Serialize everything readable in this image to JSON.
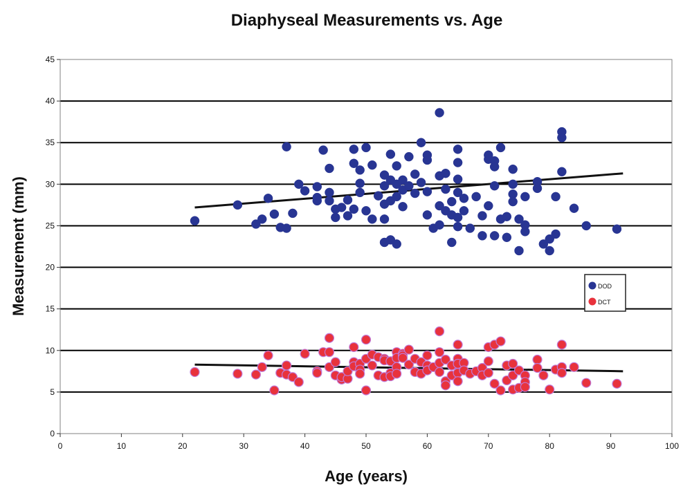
{
  "chart_data": {
    "type": "scatter",
    "title": "Diaphyseal Measurements vs. Age",
    "xlabel": "Age (years)",
    "ylabel": "Measurement (mm)",
    "xlim": [
      0,
      100
    ],
    "ylim": [
      0,
      45
    ],
    "xticks": [
      0,
      10,
      20,
      30,
      40,
      50,
      60,
      70,
      80,
      90,
      100
    ],
    "yticks": [
      0,
      5,
      10,
      15,
      20,
      25,
      30,
      35,
      40,
      45
    ],
    "grid": "horizontal",
    "legend": "right",
    "series": [
      {
        "name": "DOD",
        "color": "#283593",
        "points": [
          [
            22,
            25.6
          ],
          [
            29,
            27.5
          ],
          [
            32,
            25.2
          ],
          [
            33,
            25.8
          ],
          [
            34,
            28.3
          ],
          [
            35,
            26.4
          ],
          [
            36,
            24.8
          ],
          [
            37,
            24.7
          ],
          [
            37,
            34.5
          ],
          [
            38,
            26.5
          ],
          [
            39,
            30.0
          ],
          [
            40,
            29.2
          ],
          [
            42,
            29.7
          ],
          [
            42,
            28.4
          ],
          [
            42,
            28.0
          ],
          [
            43,
            34.1
          ],
          [
            44,
            31.9
          ],
          [
            44,
            29.0
          ],
          [
            44,
            28.0
          ],
          [
            45,
            27.0
          ],
          [
            45,
            26.0
          ],
          [
            46,
            27.2
          ],
          [
            47,
            28.1
          ],
          [
            47,
            26.2
          ],
          [
            48,
            34.2
          ],
          [
            48,
            32.5
          ],
          [
            48,
            27.0
          ],
          [
            49,
            31.7
          ],
          [
            49,
            30.1
          ],
          [
            49,
            29.0
          ],
          [
            50,
            34.4
          ],
          [
            50,
            26.8
          ],
          [
            51,
            32.3
          ],
          [
            51,
            25.8
          ],
          [
            52,
            28.6
          ],
          [
            53,
            31.1
          ],
          [
            53,
            29.8
          ],
          [
            53,
            27.6
          ],
          [
            53,
            25.8
          ],
          [
            53,
            23.0
          ],
          [
            54,
            33.6
          ],
          [
            54,
            30.5
          ],
          [
            54,
            28.0
          ],
          [
            54,
            23.3
          ],
          [
            55,
            32.2
          ],
          [
            55,
            30.0
          ],
          [
            55,
            28.5
          ],
          [
            55,
            22.8
          ],
          [
            56,
            30.5
          ],
          [
            56,
            29.3
          ],
          [
            56,
            27.3
          ],
          [
            57,
            33.3
          ],
          [
            57,
            29.8
          ],
          [
            58,
            31.2
          ],
          [
            58,
            28.9
          ],
          [
            59,
            35.0
          ],
          [
            59,
            30.2
          ],
          [
            60,
            33.5
          ],
          [
            60,
            32.9
          ],
          [
            60,
            29.1
          ],
          [
            60,
            26.3
          ],
          [
            61,
            24.7
          ],
          [
            62,
            38.6
          ],
          [
            62,
            31.0
          ],
          [
            62,
            27.4
          ],
          [
            62,
            25.1
          ],
          [
            63,
            31.3
          ],
          [
            63,
            29.4
          ],
          [
            63,
            26.8
          ],
          [
            64,
            27.9
          ],
          [
            64,
            26.3
          ],
          [
            64,
            23.0
          ],
          [
            65,
            34.2
          ],
          [
            65,
            32.6
          ],
          [
            65,
            30.6
          ],
          [
            65,
            29.0
          ],
          [
            65,
            26.0
          ],
          [
            65,
            24.9
          ],
          [
            66,
            26.8
          ],
          [
            66,
            28.3
          ],
          [
            67,
            24.7
          ],
          [
            68,
            28.5
          ],
          [
            69,
            26.2
          ],
          [
            69,
            23.8
          ],
          [
            70,
            33.5
          ],
          [
            70,
            33.0
          ],
          [
            70,
            27.4
          ],
          [
            71,
            32.8
          ],
          [
            71,
            32.1
          ],
          [
            71,
            29.8
          ],
          [
            71,
            23.8
          ],
          [
            72,
            34.4
          ],
          [
            72,
            25.8
          ],
          [
            73,
            26.1
          ],
          [
            73,
            23.6
          ],
          [
            74,
            31.8
          ],
          [
            74,
            30.0
          ],
          [
            74,
            28.8
          ],
          [
            74,
            27.9
          ],
          [
            75,
            25.8
          ],
          [
            75,
            22.0
          ],
          [
            76,
            28.5
          ],
          [
            76,
            25.1
          ],
          [
            76,
            24.3
          ],
          [
            78,
            30.3
          ],
          [
            78,
            29.5
          ],
          [
            79,
            22.8
          ],
          [
            80,
            23.4
          ],
          [
            80,
            22.0
          ],
          [
            81,
            28.5
          ],
          [
            81,
            24.0
          ],
          [
            82,
            36.3
          ],
          [
            82,
            35.6
          ],
          [
            82,
            31.5
          ],
          [
            84,
            27.1
          ],
          [
            86,
            25.0
          ],
          [
            91,
            24.6
          ]
        ],
        "trendline": [
          [
            22,
            27.2
          ],
          [
            92,
            31.3
          ]
        ]
      },
      {
        "name": "DCT",
        "color": "#e8323c",
        "points": [
          [
            22,
            7.4
          ],
          [
            29,
            7.2
          ],
          [
            32,
            7.1
          ],
          [
            33,
            8.0
          ],
          [
            34,
            9.4
          ],
          [
            35,
            5.2
          ],
          [
            36,
            7.3
          ],
          [
            37,
            7.1
          ],
          [
            37,
            8.2
          ],
          [
            38,
            6.8
          ],
          [
            39,
            6.2
          ],
          [
            40,
            9.6
          ],
          [
            42,
            7.5
          ],
          [
            42,
            7.3
          ],
          [
            43,
            9.8
          ],
          [
            44,
            11.5
          ],
          [
            44,
            9.8
          ],
          [
            44,
            8.0
          ],
          [
            45,
            8.6
          ],
          [
            45,
            7.0
          ],
          [
            46,
            6.5
          ],
          [
            46,
            6.8
          ],
          [
            47,
            6.6
          ],
          [
            47,
            7.5
          ],
          [
            48,
            10.4
          ],
          [
            48,
            8.6
          ],
          [
            48,
            8.1
          ],
          [
            49,
            8.4
          ],
          [
            49,
            7.7
          ],
          [
            49,
            7.2
          ],
          [
            50,
            11.3
          ],
          [
            50,
            9.0
          ],
          [
            50,
            5.2
          ],
          [
            51,
            9.5
          ],
          [
            51,
            8.2
          ],
          [
            52,
            9.2
          ],
          [
            52,
            7.0
          ],
          [
            53,
            9.0
          ],
          [
            53,
            8.8
          ],
          [
            53,
            6.8
          ],
          [
            54,
            8.7
          ],
          [
            54,
            7.3
          ],
          [
            54,
            6.9
          ],
          [
            55,
            9.8
          ],
          [
            55,
            9.1
          ],
          [
            55,
            8.0
          ],
          [
            55,
            7.2
          ],
          [
            56,
            9.6
          ],
          [
            56,
            9.4
          ],
          [
            56,
            9.1
          ],
          [
            57,
            10.1
          ],
          [
            57,
            8.3
          ],
          [
            58,
            9.0
          ],
          [
            58,
            7.4
          ],
          [
            59,
            8.6
          ],
          [
            59,
            7.2
          ],
          [
            60,
            9.4
          ],
          [
            60,
            8.2
          ],
          [
            60,
            7.6
          ],
          [
            61,
            8.0
          ],
          [
            62,
            12.3
          ],
          [
            62,
            9.8
          ],
          [
            62,
            8.5
          ],
          [
            62,
            7.4
          ],
          [
            63,
            8.9
          ],
          [
            63,
            6.3
          ],
          [
            63,
            5.8
          ],
          [
            64,
            8.2
          ],
          [
            64,
            7.0
          ],
          [
            65,
            10.7
          ],
          [
            65,
            9.0
          ],
          [
            65,
            8.4
          ],
          [
            65,
            7.3
          ],
          [
            65,
            6.3
          ],
          [
            66,
            8.5
          ],
          [
            66,
            7.6
          ],
          [
            67,
            7.2
          ],
          [
            68,
            7.5
          ],
          [
            69,
            7.9
          ],
          [
            69,
            7.0
          ],
          [
            70,
            10.4
          ],
          [
            70,
            8.7
          ],
          [
            70,
            7.3
          ],
          [
            71,
            10.7
          ],
          [
            71,
            6.0
          ],
          [
            72,
            11.1
          ],
          [
            72,
            5.2
          ],
          [
            73,
            8.2
          ],
          [
            73,
            6.4
          ],
          [
            74,
            8.4
          ],
          [
            74,
            7.0
          ],
          [
            74,
            5.3
          ],
          [
            75,
            7.6
          ],
          [
            75,
            5.5
          ],
          [
            76,
            7.0
          ],
          [
            76,
            6.2
          ],
          [
            76,
            5.6
          ],
          [
            78,
            8.9
          ],
          [
            78,
            7.9
          ],
          [
            79,
            7.0
          ],
          [
            80,
            5.3
          ],
          [
            81,
            7.7
          ],
          [
            82,
            10.7
          ],
          [
            82,
            8.0
          ],
          [
            82,
            7.3
          ],
          [
            84,
            8.0
          ],
          [
            86,
            6.1
          ],
          [
            91,
            6.0
          ]
        ],
        "trendline": [
          [
            22,
            8.3
          ],
          [
            92,
            7.5
          ]
        ]
      }
    ]
  }
}
